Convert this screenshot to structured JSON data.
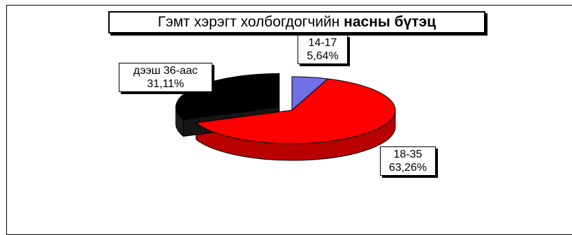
{
  "chart_data": {
    "type": "pie",
    "title_regular": "Гэмт  хэрэгт холбогдогчийн ",
    "title_bold": "насны  бүтэц",
    "slices": [
      {
        "category": "14-17",
        "value": 5.64,
        "label": "5,64%",
        "color": "#6f6fe6"
      },
      {
        "category": "18-35",
        "value": 63.26,
        "label": "63,26%",
        "color": "#ff0000"
      },
      {
        "category": "дээш 36-аас",
        "value": 31.11,
        "label": "31,11%",
        "color": "#000000"
      }
    ],
    "exploded": "дээш 36-аас"
  }
}
